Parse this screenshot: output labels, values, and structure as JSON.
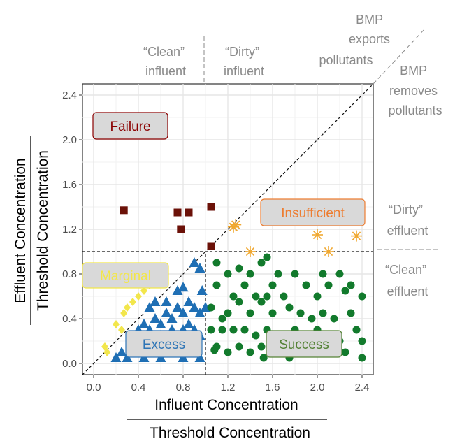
{
  "chart_data": {
    "type": "scatter",
    "xlim": [
      -0.1,
      2.5
    ],
    "ylim": [
      -0.1,
      2.5
    ],
    "x_ticks": [
      0.0,
      0.4,
      0.8,
      1.2,
      1.6,
      2.0,
      2.4
    ],
    "x_tick_labels": [
      "0.0",
      "0.4",
      "0.8",
      "1.2",
      "1.6",
      "2.0",
      "2.4"
    ],
    "y_ticks": [
      0.0,
      0.4,
      0.8,
      1.2,
      1.6,
      2.0,
      2.4
    ],
    "y_tick_labels": [
      "0.0",
      "0.4",
      "0.8",
      "1.2",
      "1.6",
      "2.0",
      "2.4"
    ],
    "xlabel_numerator": "Influent Concentration",
    "xlabel_denominator": "Threshold Concentration",
    "ylabel_numerator": "Effluent Concentration",
    "ylabel_denominator": "Threshold Concentration",
    "grid": true,
    "threshold_x": 1.0,
    "threshold_y": 1.0,
    "region_labels": [
      {
        "text": "Failure",
        "color": "#8b0000",
        "fill": "#d9d9d9",
        "border": "#8b0000"
      },
      {
        "text": "Insufficient",
        "color": "#ed7d31",
        "fill": "#d9d9d9",
        "border": "#ed7d31"
      },
      {
        "text": "Marginal",
        "color": "#f2e64b",
        "fill": "#d9d9d9",
        "border": "#f2e64b"
      },
      {
        "text": "Excess",
        "color": "#2e75b6",
        "fill": "#d9d9d9",
        "border": "#2e75b6"
      },
      {
        "text": "Success",
        "color": "#548235",
        "fill": "#d9d9d9",
        "border": "#548235"
      }
    ],
    "annotations": {
      "clean_influent": [
        "“Clean”",
        "influent"
      ],
      "dirty_influent": [
        "“Dirty”",
        "influent"
      ],
      "bmp_exports": [
        "BMP",
        "exports",
        "pollutants"
      ],
      "bmp_removes": [
        "BMP",
        "removes",
        "pollutants"
      ],
      "dirty_effluent": [
        "“Dirty”",
        "effluent"
      ],
      "clean_effluent": [
        "“Clean”",
        "effluent"
      ]
    },
    "series": [
      {
        "category": "Failure",
        "marker": "square",
        "color": "#6b1108",
        "points": [
          [
            0.27,
            1.37
          ],
          [
            0.75,
            1.35
          ],
          [
            0.85,
            1.35
          ],
          [
            0.78,
            1.2
          ],
          [
            1.05,
            1.4
          ],
          [
            1.05,
            1.05
          ]
        ]
      },
      {
        "category": "Insufficient",
        "marker": "asterisk",
        "color": "#f0a830",
        "points": [
          [
            1.25,
            1.22
          ],
          [
            1.27,
            1.24
          ],
          [
            1.4,
            1.0
          ],
          [
            2.0,
            1.15
          ],
          [
            2.1,
            1.0
          ],
          [
            2.35,
            1.14
          ]
        ]
      },
      {
        "category": "Marginal",
        "marker": "diamond",
        "color": "#f2e64b",
        "points": [
          [
            0.1,
            0.15
          ],
          [
            0.12,
            0.1
          ],
          [
            0.2,
            0.35
          ],
          [
            0.25,
            0.3
          ],
          [
            0.27,
            0.45
          ],
          [
            0.3,
            0.5
          ],
          [
            0.35,
            0.55
          ],
          [
            0.4,
            0.6
          ],
          [
            0.45,
            0.65
          ],
          [
            0.5,
            0.7
          ],
          [
            0.55,
            0.75
          ],
          [
            0.58,
            0.8
          ]
        ]
      },
      {
        "category": "Excess",
        "marker": "triangle",
        "color": "#1f6fb4",
        "points": [
          [
            0.2,
            0.05
          ],
          [
            0.25,
            0.1
          ],
          [
            0.3,
            0.05
          ],
          [
            0.35,
            0.15
          ],
          [
            0.4,
            0.12
          ],
          [
            0.45,
            0.05
          ],
          [
            0.5,
            0.2
          ],
          [
            0.55,
            0.15
          ],
          [
            0.6,
            0.05
          ],
          [
            0.65,
            0.1
          ],
          [
            0.7,
            0.2
          ],
          [
            0.75,
            0.15
          ],
          [
            0.8,
            0.05
          ],
          [
            0.85,
            0.1
          ],
          [
            0.9,
            0.15
          ],
          [
            0.95,
            0.05
          ],
          [
            0.4,
            0.3
          ],
          [
            0.45,
            0.35
          ],
          [
            0.5,
            0.3
          ],
          [
            0.55,
            0.4
          ],
          [
            0.6,
            0.35
          ],
          [
            0.65,
            0.45
          ],
          [
            0.7,
            0.4
          ],
          [
            0.75,
            0.5
          ],
          [
            0.8,
            0.45
          ],
          [
            0.85,
            0.55
          ],
          [
            0.9,
            0.5
          ],
          [
            0.95,
            0.45
          ],
          [
            0.55,
            0.55
          ],
          [
            0.6,
            0.25
          ],
          [
            0.7,
            0.3
          ],
          [
            0.8,
            0.3
          ],
          [
            0.85,
            0.35
          ],
          [
            0.9,
            0.3
          ],
          [
            0.75,
            0.65
          ],
          [
            0.8,
            0.68
          ],
          [
            0.9,
            0.9
          ],
          [
            0.95,
            0.85
          ],
          [
            0.97,
            0.65
          ],
          [
            0.95,
            0.25
          ],
          [
            1.0,
            0.5
          ],
          [
            0.5,
            0.5
          ],
          [
            0.65,
            0.55
          ]
        ]
      },
      {
        "category": "Success",
        "marker": "circle",
        "color": "#127a2c",
        "points": [
          [
            1.1,
            0.9
          ],
          [
            1.2,
            0.8
          ],
          [
            1.3,
            0.85
          ],
          [
            1.4,
            0.8
          ],
          [
            1.5,
            0.9
          ],
          [
            1.55,
            0.95
          ],
          [
            1.8,
            0.8
          ],
          [
            2.2,
            0.8
          ],
          [
            2.3,
            0.7
          ],
          [
            2.4,
            0.6
          ],
          [
            1.1,
            0.7
          ],
          [
            1.25,
            0.6
          ],
          [
            1.35,
            0.7
          ],
          [
            1.45,
            0.6
          ],
          [
            1.6,
            0.7
          ],
          [
            1.7,
            0.6
          ],
          [
            1.9,
            0.7
          ],
          [
            2.0,
            0.6
          ],
          [
            2.1,
            0.7
          ],
          [
            2.25,
            0.65
          ],
          [
            1.05,
            0.5
          ],
          [
            1.2,
            0.45
          ],
          [
            1.3,
            0.55
          ],
          [
            1.4,
            0.45
          ],
          [
            1.5,
            0.55
          ],
          [
            1.6,
            0.45
          ],
          [
            1.75,
            0.5
          ],
          [
            1.85,
            0.45
          ],
          [
            1.95,
            0.4
          ],
          [
            2.05,
            0.45
          ],
          [
            2.15,
            0.4
          ],
          [
            2.3,
            0.45
          ],
          [
            1.05,
            0.3
          ],
          [
            1.15,
            0.3
          ],
          [
            1.25,
            0.3
          ],
          [
            1.35,
            0.3
          ],
          [
            1.45,
            0.25
          ],
          [
            1.55,
            0.3
          ],
          [
            1.65,
            0.25
          ],
          [
            1.8,
            0.3
          ],
          [
            1.9,
            0.25
          ],
          [
            2.0,
            0.3
          ],
          [
            2.1,
            0.25
          ],
          [
            2.2,
            0.2
          ],
          [
            2.35,
            0.3
          ],
          [
            1.1,
            0.15
          ],
          [
            1.2,
            0.1
          ],
          [
            1.3,
            0.15
          ],
          [
            1.4,
            0.1
          ],
          [
            1.5,
            0.15
          ],
          [
            1.6,
            0.1
          ],
          [
            1.7,
            0.15
          ],
          [
            1.85,
            0.1
          ],
          [
            1.95,
            0.15
          ],
          [
            2.05,
            0.1
          ],
          [
            2.15,
            0.15
          ],
          [
            2.25,
            0.1
          ],
          [
            2.4,
            0.2
          ],
          [
            2.4,
            0.05
          ],
          [
            1.08,
            0.12
          ],
          [
            1.52,
            0.05
          ],
          [
            1.75,
            0.05
          ],
          [
            1.15,
            0.4
          ],
          [
            1.65,
            0.8
          ],
          [
            2.05,
            0.8
          ],
          [
            1.55,
            0.6
          ]
        ]
      }
    ]
  }
}
